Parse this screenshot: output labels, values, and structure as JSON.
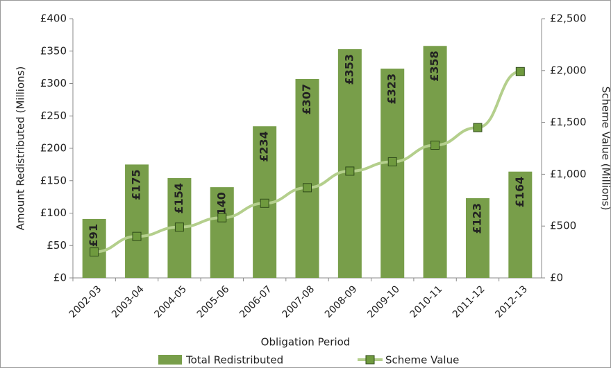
{
  "chart_data": {
    "type": "bar-line",
    "categories": [
      "2002-03",
      "2003-04",
      "2004-05",
      "2005-06",
      "2006-07",
      "2007-08",
      "2008-09",
      "2009-10",
      "2010-11",
      "2011-12",
      "2012-13"
    ],
    "series": [
      {
        "name": "Total Redistributed",
        "color": "#789e4a",
        "type": "bar",
        "axis": "y",
        "values": [
          91,
          175,
          154,
          140,
          234,
          307,
          353,
          323,
          358,
          123,
          164
        ],
        "value_labels": [
          "£91",
          "£175",
          "£154",
          "£140",
          "£234",
          "£307",
          "£353",
          "£323",
          "£358",
          "£123",
          "£164"
        ]
      },
      {
        "name": "Scheme Value",
        "color": "#b4cf8c",
        "marker_color": "#6f9a3e",
        "type": "line",
        "axis": "y2",
        "values": [
          250,
          400,
          490,
          580,
          720,
          870,
          1030,
          1120,
          1280,
          1450,
          1990
        ]
      }
    ],
    "ylabel": "Amount Redistributed (Millions)",
    "y2label": "Scheme Value (Millions)",
    "xlabel": "Obligation Period",
    "ylim": [
      0,
      400
    ],
    "yticks": [
      {
        "value": 0,
        "label": "£0"
      },
      {
        "value": 50,
        "label": "£50"
      },
      {
        "value": 100,
        "label": "£100"
      },
      {
        "value": 150,
        "label": "£150"
      },
      {
        "value": 200,
        "label": "£200"
      },
      {
        "value": 250,
        "label": "£250"
      },
      {
        "value": 300,
        "label": "£300"
      },
      {
        "value": 350,
        "label": "£350"
      },
      {
        "value": 400,
        "label": "£400"
      }
    ],
    "y2lim": [
      0,
      2500
    ],
    "y2ticks": [
      {
        "value": 0,
        "label": "£0"
      },
      {
        "value": 500,
        "label": "£500"
      },
      {
        "value": 1000,
        "label": "£1,000"
      },
      {
        "value": 1500,
        "label": "£1,500"
      },
      {
        "value": 2000,
        "label": "£2,000"
      },
      {
        "value": 2500,
        "label": "£2,500"
      }
    ],
    "grid": false
  }
}
